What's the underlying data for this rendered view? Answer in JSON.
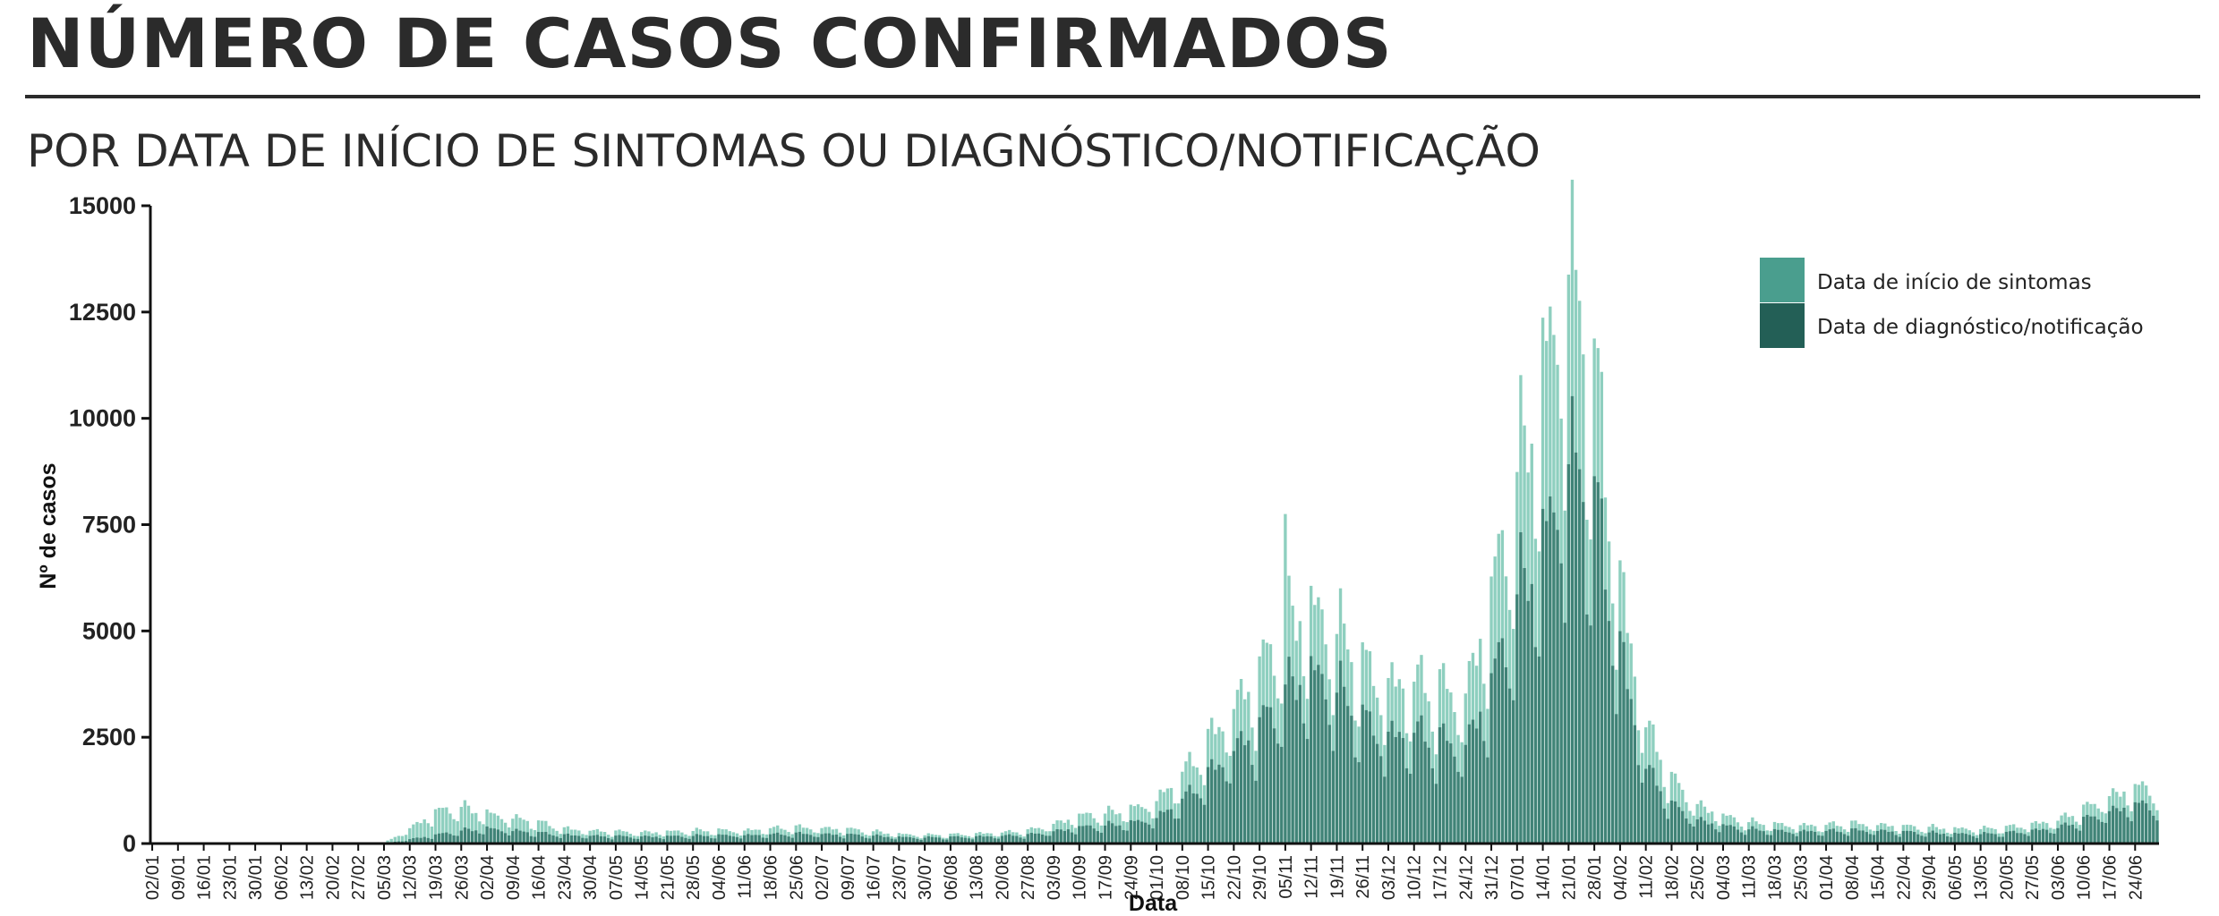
{
  "header": {
    "title": "NÚMERO DE CASOS CONFIRMADOS",
    "subtitle": "POR DATA DE INÍCIO DE SINTOMAS OU DIAGNÓSTICO/NOTIFICAÇÃO"
  },
  "colors": {
    "symptom_onset": "#8ecfbf",
    "diagnosis": "#2e7266",
    "legend_symptom": "#4a9e8e",
    "legend_diagnosis": "#235f56",
    "axis": "#111111"
  },
  "chart_data": {
    "type": "bar",
    "xlabel": "Data",
    "ylabel": "Nº de casos",
    "ylim": [
      0,
      15000
    ],
    "yticks": [
      0,
      2500,
      5000,
      7500,
      10000,
      12500,
      15000
    ],
    "xticks": [
      "02/01",
      "09/01",
      "16/01",
      "23/01",
      "30/01",
      "06/02",
      "13/02",
      "20/02",
      "27/02",
      "05/03",
      "12/03",
      "19/03",
      "26/03",
      "02/04",
      "09/04",
      "16/04",
      "23/04",
      "30/04",
      "07/05",
      "14/05",
      "21/05",
      "28/05",
      "04/06",
      "11/06",
      "18/06",
      "25/06",
      "02/07",
      "09/07",
      "16/07",
      "23/07",
      "30/07",
      "06/08",
      "13/08",
      "20/08",
      "27/08",
      "03/09",
      "10/09",
      "17/09",
      "24/09",
      "01/10",
      "08/10",
      "15/10",
      "22/10",
      "29/10",
      "05/11",
      "12/11",
      "19/11",
      "26/11",
      "03/12",
      "10/12",
      "17/12",
      "24/12",
      "31/12",
      "07/01",
      "14/01",
      "21/01",
      "28/01",
      "04/02",
      "11/02",
      "18/02",
      "25/02",
      "04/03",
      "11/03",
      "18/03",
      "25/03",
      "01/04",
      "08/04",
      "15/04",
      "22/04",
      "29/04",
      "06/05",
      "13/05",
      "20/05",
      "27/05",
      "03/06",
      "10/06",
      "17/06",
      "24/06"
    ],
    "legend": {
      "position": "top-right",
      "entries": [
        "Data de início de sintomas",
        "Data de diagnóstico/notificação"
      ]
    },
    "series": [
      {
        "name": "Data de início de sintomas",
        "weekly_levels": [
          0,
          0,
          0,
          0,
          0,
          0,
          0,
          0,
          0,
          10,
          350,
          750,
          850,
          700,
          600,
          500,
          350,
          300,
          280,
          260,
          280,
          300,
          310,
          300,
          350,
          380,
          360,
          340,
          280,
          220,
          200,
          210,
          230,
          260,
          300,
          450,
          650,
          700,
          800,
          1000,
          1600,
          2400,
          3200,
          4000,
          5200,
          5500,
          5000,
          4200,
          3700,
          3800,
          3600,
          3500,
          5800,
          8500,
          11000,
          13500,
          11000,
          6000,
          2800,
          1500,
          900,
          650,
          500,
          450,
          420,
          430,
          470,
          440,
          400,
          380,
          350,
          340,
          380,
          450,
          550,
          800,
          1100,
          1300
        ],
        "peaks": {
          "05/11": 7750,
          "19/01": 14600,
          "26/01": 14150
        }
      },
      {
        "name": "Data de diagnóstico/notificação",
        "weekly_levels": [
          0,
          0,
          0,
          0,
          0,
          0,
          0,
          0,
          0,
          0,
          100,
          200,
          300,
          350,
          300,
          250,
          200,
          180,
          170,
          160,
          170,
          180,
          190,
          190,
          210,
          230,
          220,
          210,
          180,
          150,
          140,
          150,
          160,
          180,
          200,
          280,
          380,
          420,
          480,
          600,
          1000,
          1600,
          2200,
          2700,
          3600,
          4000,
          3600,
          2900,
          2500,
          2600,
          2400,
          2300,
          3700,
          5700,
          7000,
          9000,
          8000,
          4500,
          1800,
          900,
          550,
          420,
          330,
          300,
          280,
          290,
          310,
          300,
          270,
          250,
          230,
          220,
          250,
          300,
          370,
          550,
          750,
          900
        ]
      }
    ]
  }
}
